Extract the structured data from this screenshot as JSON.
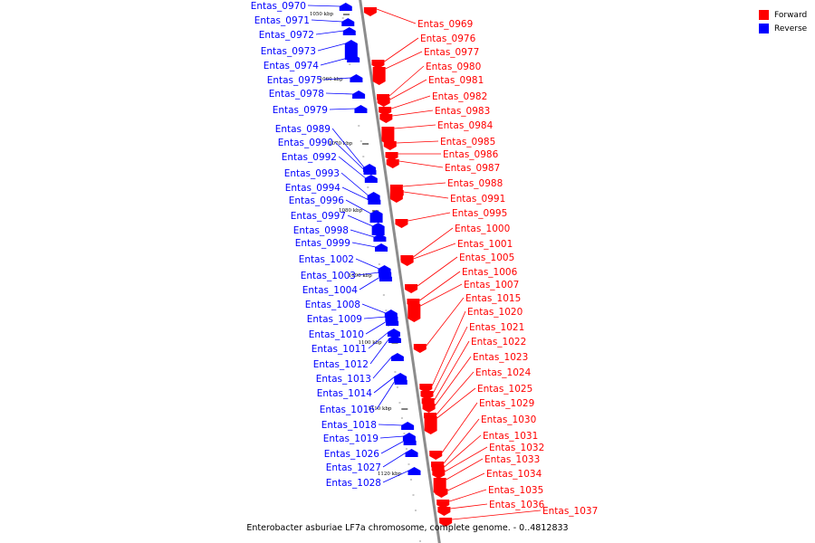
{
  "caption": "Enterobacter asburiae LF7a chromosome, complete genome. - 0..4812833",
  "legend": [
    {
      "label": "Forward",
      "color": "#ff0000"
    },
    {
      "label": "Reverse",
      "color": "#0000ff"
    }
  ],
  "colors": {
    "forward": "#ff0000",
    "reverse": "#0000ff",
    "backbone": "#8c8c8c"
  },
  "scale_labels": [
    "1050 kbp",
    "1060 kbp",
    "1070 kbp",
    "1080 kbp",
    "1090 kbp",
    "1100 kbp",
    "1110 kbp",
    "1120 kbp"
  ],
  "reverse_genes": [
    "Entas_0970",
    "Entas_0971",
    "Entas_0972",
    "Entas_0973",
    "Entas_0974",
    "Entas_0975",
    "Entas_0978",
    "Entas_0979",
    "Entas_0989",
    "Entas_0990",
    "Entas_0992",
    "Entas_0993",
    "Entas_0994",
    "Entas_0996",
    "Entas_0997",
    "Entas_0998",
    "Entas_0999",
    "Entas_1002",
    "Entas_1003",
    "Entas_1004",
    "Entas_1008",
    "Entas_1009",
    "Entas_1010",
    "Entas_1011",
    "Entas_1012",
    "Entas_1013",
    "Entas_1014",
    "Entas_1016",
    "Entas_1018",
    "Entas_1019",
    "Entas_1026",
    "Entas_1027",
    "Entas_1028"
  ],
  "forward_genes": [
    "Entas_0969",
    "Entas_0976",
    "Entas_0977",
    "Entas_0980",
    "Entas_0981",
    "Entas_0982",
    "Entas_0983",
    "Entas_0984",
    "Entas_0985",
    "Entas_0986",
    "Entas_0987",
    "Entas_0988",
    "Entas_0991",
    "Entas_0995",
    "Entas_1000",
    "Entas_1001",
    "Entas_1005",
    "Entas_1006",
    "Entas_1007",
    "Entas_1015",
    "Entas_1020",
    "Entas_1021",
    "Entas_1022",
    "Entas_1023",
    "Entas_1024",
    "Entas_1025",
    "Entas_1029",
    "Entas_1030",
    "Entas_1031",
    "Entas_1032",
    "Entas_1033",
    "Entas_1034",
    "Entas_1035",
    "Entas_1036",
    "Entas_1037"
  ]
}
